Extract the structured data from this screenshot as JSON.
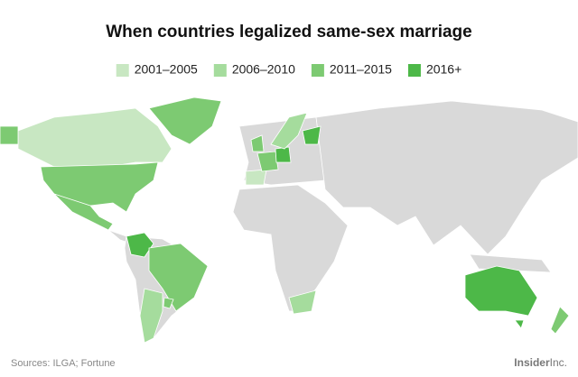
{
  "title": "When countries legalized same-sex marriage",
  "legend": [
    {
      "label": "2001–2005",
      "color": "#c8e7c2"
    },
    {
      "label": "2006–2010",
      "color": "#a5dc9d"
    },
    {
      "label": "2011–2015",
      "color": "#7dca72"
    },
    {
      "label": "2016+",
      "color": "#4db848"
    }
  ],
  "source": "Sources: ILGA; Fortune",
  "brand": {
    "name": "Insider",
    "suffix": "Inc."
  }
}
